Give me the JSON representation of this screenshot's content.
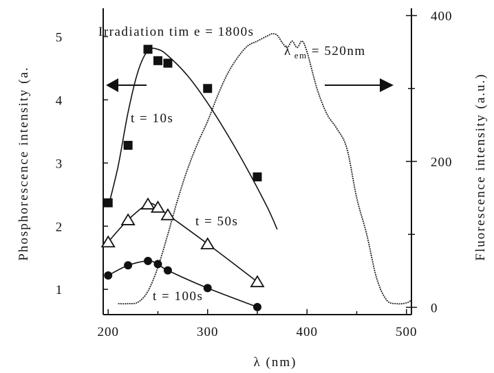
{
  "chart_data": {
    "type": "scatter",
    "title": "Irradiation tim e = 1800s",
    "xlabel": "λ (nm)",
    "ylabel_left": "Phosphorescence intensity (a.",
    "ylabel_right": "Fluorescence intensity (a.u.)",
    "xlim": [
      195,
      505
    ],
    "ylim_left": [
      0.6,
      5.45
    ],
    "ylim_right": [
      -10,
      410
    ],
    "x_ticks": [
      200,
      300,
      400,
      500
    ],
    "y_ticks_left": [
      1,
      2,
      3,
      4,
      5
    ],
    "y_ticks_right": [
      0,
      200,
      400
    ],
    "x_tick_labels": [
      "200",
      "300",
      "400",
      "500"
    ],
    "y_tick_labels_left": [
      "1",
      "2",
      "3",
      "4",
      "5"
    ],
    "y_tick_labels_right": [
      "0",
      "200",
      "400"
    ],
    "series": [
      {
        "name": "t = 10s",
        "axis": "left",
        "marker": "square",
        "x": [
          200,
          220,
          240,
          250,
          260,
          300,
          350
        ],
        "y": [
          2.37,
          3.28,
          4.8,
          4.62,
          4.58,
          4.18,
          2.78
        ],
        "fit": {
          "x": [
            200,
            210,
            220,
            230,
            240,
            250,
            260,
            280,
            300,
            320,
            340,
            360,
            370
          ],
          "y": [
            2.3,
            2.95,
            3.8,
            4.45,
            4.78,
            4.8,
            4.7,
            4.38,
            3.95,
            3.45,
            2.9,
            2.3,
            1.95
          ]
        }
      },
      {
        "name": "t = 50s",
        "axis": "left",
        "marker": "triangle",
        "x": [
          200,
          220,
          240,
          250,
          260,
          300,
          350
        ],
        "y": [
          1.75,
          2.1,
          2.35,
          2.3,
          2.18,
          1.72,
          1.12
        ],
        "fit": {
          "x": [
            200,
            220,
            240,
            250,
            260,
            300,
            350
          ],
          "y": [
            1.75,
            2.1,
            2.35,
            2.3,
            2.18,
            1.72,
            1.12
          ]
        }
      },
      {
        "name": "t = 100s",
        "axis": "left",
        "marker": "circle",
        "x": [
          200,
          220,
          240,
          250,
          260,
          300,
          350
        ],
        "y": [
          1.22,
          1.38,
          1.45,
          1.4,
          1.3,
          1.02,
          0.72
        ],
        "fit": {
          "x": [
            200,
            220,
            240,
            250,
            260,
            300,
            350
          ],
          "y": [
            1.22,
            1.38,
            1.45,
            1.4,
            1.3,
            1.02,
            0.72
          ]
        }
      },
      {
        "name": "λ em = 520nm",
        "axis": "right",
        "marker": "none",
        "x": [
          210,
          220,
          230,
          240,
          250,
          260,
          270,
          280,
          290,
          300,
          310,
          320,
          330,
          340,
          350,
          360,
          365,
          370,
          375,
          380,
          385,
          390,
          395,
          400,
          410,
          420,
          430,
          440,
          450,
          460,
          470,
          480,
          490,
          500,
          505
        ],
        "y": [
          5,
          5,
          7,
          22,
          55,
          100,
          148,
          190,
          225,
          255,
          290,
          320,
          342,
          358,
          365,
          372,
          375,
          373,
          363,
          356,
          365,
          356,
          365,
          350,
          300,
          265,
          245,
          218,
          150,
          100,
          40,
          10,
          5,
          6,
          10
        ]
      }
    ],
    "annotations": [
      {
        "text": "t = 10s"
      },
      {
        "text": "t = 50s"
      },
      {
        "text": "t = 100s"
      },
      {
        "text_prefix": "λ",
        "text_sub": "em",
        "text_suffix": " = 520nm"
      }
    ],
    "arrows": [
      "left-axis",
      "right-axis"
    ],
    "grid": false,
    "legend": "none"
  }
}
